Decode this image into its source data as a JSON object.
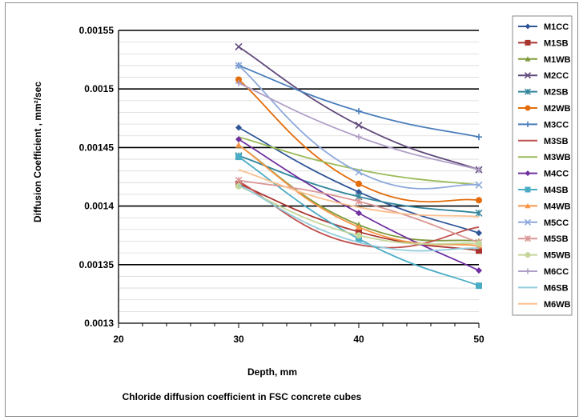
{
  "chart_data": {
    "type": "line",
    "title": "Chloride diffusion coefficient in FSC concrete cubes",
    "xlabel": "Depth, mm",
    "ylabel": "Diffusion Coefficient , mm²/sec",
    "xlim": [
      20,
      50
    ],
    "ylim": [
      0.0013,
      0.00155
    ],
    "xticks": [
      "20",
      "30",
      "40",
      "50"
    ],
    "yticks": [
      "0.0013",
      "0.00135",
      "0.0014",
      "0.00145",
      "0.0015",
      "0.00155"
    ],
    "x": [
      30,
      40,
      50
    ],
    "grid": "horizontal major and minor lines",
    "legend_position": "right",
    "series": [
      {
        "name": "M1CC",
        "values": [
          0.001467,
          0.001412,
          0.001377
        ],
        "color": "#2F5597",
        "marker": "diamond"
      },
      {
        "name": "M1SB",
        "values": [
          0.001419,
          0.001378,
          0.001362
        ],
        "color": "#A9332F",
        "marker": "square"
      },
      {
        "name": "M1WB",
        "values": [
          0.001452,
          0.001384,
          0.00137
        ],
        "color": "#7F9A3D",
        "marker": "triangle"
      },
      {
        "name": "M2CC",
        "values": [
          0.001536,
          0.001469,
          0.001431
        ],
        "color": "#604A7B",
        "marker": "x"
      },
      {
        "name": "M2SB",
        "values": [
          0.001443,
          0.001408,
          0.001394
        ],
        "color": "#31859C",
        "marker": "star"
      },
      {
        "name": "M2WB",
        "values": [
          0.001508,
          0.001419,
          0.001405
        ],
        "color": "#E36C09",
        "marker": "circle"
      },
      {
        "name": "M3CC",
        "values": [
          0.00152,
          0.001481,
          0.001459
        ],
        "color": "#4A7EBB",
        "marker": "plus"
      },
      {
        "name": "M3SB",
        "values": [
          0.001421,
          0.001367,
          0.001382
        ],
        "color": "#C0504D",
        "marker": "none"
      },
      {
        "name": "M3WB",
        "values": [
          0.001459,
          0.001431,
          0.001418
        ],
        "color": "#9BBB59",
        "marker": "none"
      },
      {
        "name": "M4CC",
        "values": [
          0.001457,
          0.001394,
          0.001345
        ],
        "color": "#7030A0",
        "marker": "diamond"
      },
      {
        "name": "M4SB",
        "values": [
          0.001442,
          0.001372,
          0.001332
        ],
        "color": "#4BACC6",
        "marker": "square"
      },
      {
        "name": "M4WB",
        "values": [
          0.001452,
          0.001382,
          0.001366
        ],
        "color": "#F79646",
        "marker": "triangle"
      },
      {
        "name": "M5CC",
        "values": [
          0.00152,
          0.001429,
          0.001418
        ],
        "color": "#8EA9DB",
        "marker": "x"
      },
      {
        "name": "M5SB",
        "values": [
          0.001422,
          0.001404,
          0.001369
        ],
        "color": "#DA9694",
        "marker": "star"
      },
      {
        "name": "M5WB",
        "values": [
          0.001417,
          0.001375,
          0.001368
        ],
        "color": "#C4D79B",
        "marker": "circle"
      },
      {
        "name": "M6CC",
        "values": [
          0.001505,
          0.001459,
          0.001431
        ],
        "color": "#B1A0C7",
        "marker": "plus"
      },
      {
        "name": "M6SB",
        "values": [
          0.001418,
          0.001369,
          0.001364
        ],
        "color": "#93CDDD",
        "marker": "none"
      },
      {
        "name": "M6WB",
        "values": [
          0.001431,
          0.001399,
          0.001391
        ],
        "color": "#FAC090",
        "marker": "none"
      }
    ]
  }
}
